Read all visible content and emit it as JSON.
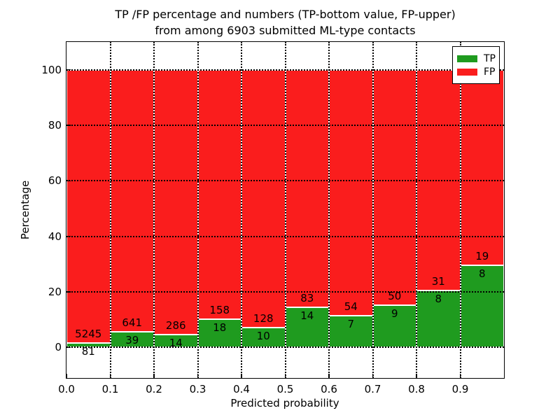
{
  "title": {
    "line1": "TP /FP percentage and numbers (TP-bottom value, FP-upper)",
    "line2": "from among 6903 submitted ML-type contacts"
  },
  "axes": {
    "xlabel": "Predicted probability",
    "ylabel": "Percentage",
    "x_tick_labels": [
      "0.0",
      "0.1",
      "0.2",
      "0.3",
      "0.4",
      "0.5",
      "0.6",
      "0.7",
      "0.8",
      "0.9"
    ],
    "x_tick_values": [
      0.0,
      0.1,
      0.2,
      0.3,
      0.4,
      0.5,
      0.6,
      0.7,
      0.8,
      0.9
    ],
    "y_tick_labels": [
      "0",
      "20",
      "40",
      "60",
      "80",
      "100"
    ],
    "y_tick_values": [
      0,
      20,
      40,
      60,
      80,
      100
    ],
    "xlim": [
      0.0,
      1.0
    ],
    "ylim": [
      -11,
      110
    ],
    "grid": "dotted"
  },
  "legend": {
    "position": "upper-right",
    "items": [
      {
        "label": "TP",
        "color": "#1f9b1f"
      },
      {
        "label": "FP",
        "color": "#fa1d1d"
      }
    ]
  },
  "chart_data": {
    "type": "bar",
    "stacked": true,
    "normalized": "each probability bin scaled to 100%",
    "total_contacts": 6903,
    "bin_width": 0.1,
    "bin_start": [
      0.0,
      0.1,
      0.2,
      0.3,
      0.4,
      0.5,
      0.6,
      0.7,
      0.8,
      0.9
    ],
    "categories": [
      "0.0-0.1",
      "0.1-0.2",
      "0.2-0.3",
      "0.3-0.4",
      "0.4-0.5",
      "0.5-0.6",
      "0.6-0.7",
      "0.7-0.8",
      "0.8-0.9",
      "0.9-1.0"
    ],
    "series": [
      {
        "name": "TP",
        "color": "#1f9b1f",
        "counts": [
          81,
          39,
          14,
          18,
          10,
          14,
          7,
          9,
          8,
          8
        ],
        "percent": [
          1.52,
          5.74,
          4.67,
          10.23,
          7.25,
          14.43,
          11.48,
          15.25,
          20.51,
          29.63
        ]
      },
      {
        "name": "FP",
        "color": "#fa1d1d",
        "counts": [
          5245,
          641,
          286,
          158,
          128,
          83,
          54,
          50,
          31,
          19
        ],
        "percent": [
          98.48,
          94.26,
          95.33,
          89.77,
          92.75,
          85.57,
          88.52,
          84.75,
          79.49,
          70.37
        ]
      }
    ]
  },
  "colors": {
    "background": "#ffffff",
    "bar_edge": "#ffffff",
    "grid": "#000000",
    "text": "#000000"
  }
}
